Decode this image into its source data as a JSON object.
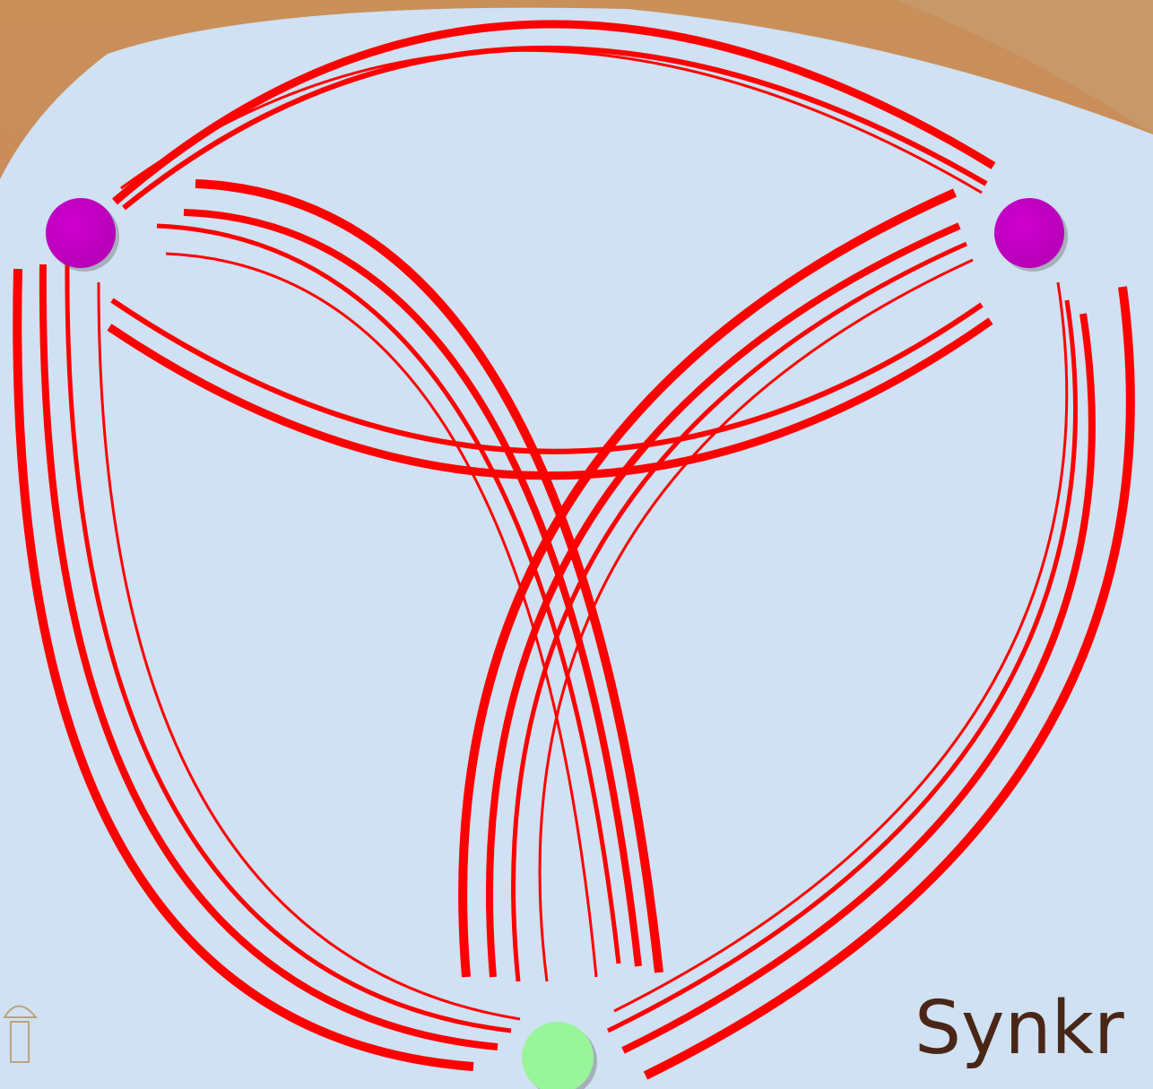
{
  "slide": {
    "caption": "Synkr"
  }
}
